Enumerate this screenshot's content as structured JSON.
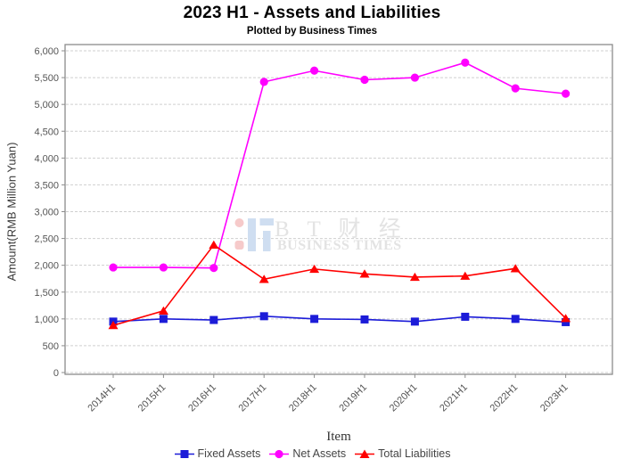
{
  "header": {
    "title": "2023 H1 - Assets and Liabilities",
    "subtitle": "Plotted by Business Times"
  },
  "watermark": {
    "logo_text": "B T 财 经",
    "subtext": "BUSINESS TIMES",
    "logo_pink": "#f6caca",
    "logo_blue": "#cfdef1",
    "text_color": "#e3e3e3"
  },
  "chart_data": {
    "type": "line",
    "title": "2023 H1 - Assets and Liabilities",
    "subtitle": "Plotted by Business Times",
    "xlabel": "Item",
    "ylabel": "Amount(RMB Million Yuan)",
    "ylim": [
      0,
      6000
    ],
    "ytick_step": 500,
    "grid": true,
    "grid_style": "dashed",
    "legend_position": "bottom",
    "categories": [
      "2014H1",
      "2015H1",
      "2016H1",
      "2017H1",
      "2018H1",
      "2019H1",
      "2020H1",
      "2021H1",
      "2022H1",
      "2023H1"
    ],
    "series": [
      {
        "name": "Fixed Assets",
        "marker": "square",
        "color": "#1c1cd8",
        "values": [
          950,
          1000,
          980,
          1050,
          1000,
          990,
          950,
          1040,
          1000,
          940
        ]
      },
      {
        "name": "Net Assets",
        "marker": "circle",
        "color": "#ff00ff",
        "values": [
          1960,
          1960,
          1950,
          5420,
          5630,
          5460,
          5500,
          5780,
          5300,
          5200
        ]
      },
      {
        "name": "Total Liabilities",
        "marker": "triangle",
        "color": "#ff0000",
        "values": [
          880,
          1150,
          2380,
          1740,
          1930,
          1840,
          1780,
          1800,
          1940,
          1010
        ]
      }
    ],
    "axis_colors": {
      "border": "#8c8c8c",
      "grid": "#cfcfcf",
      "tick_label": "#555555"
    }
  }
}
